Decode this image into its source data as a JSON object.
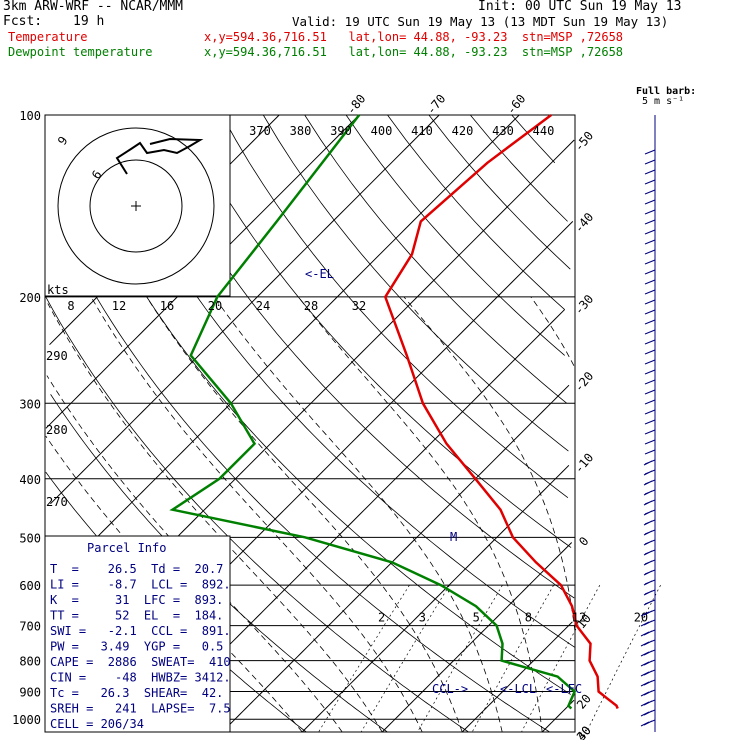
{
  "header": {
    "model": "3km ARW-WRF -- NCAR/MMM",
    "init": "Init: 00 UTC Sun 19 May 13",
    "fcst_label": "Fcst:",
    "fcst_value": "19 h",
    "valid": "Valid: 19 UTC Sun 19 May 13 (13 MDT Sun 19 May 13)",
    "temp_label": "Temperature",
    "temp_info": "x,y=594.36,716.51   lat,lon= 44.88, -93.23  stn=MSP ,72658",
    "dew_label": "Dewpoint temperature",
    "dew_info": "x,y=594.36,716.51   lat,lon= 44.88, -93.23  stn=MSP ,72658"
  },
  "barb_legend": {
    "title": "Full barb:",
    "units": "5 m s⁻¹"
  },
  "colors": {
    "temperature": "#e00000",
    "dewpoint": "#008000",
    "info": "#000080",
    "grid": "#000000"
  },
  "chart_data": {
    "type": "line",
    "chart_kind": "skew-T log-p sounding",
    "pressure_levels": [
      "100",
      "200",
      "300",
      "400",
      "500",
      "600",
      "700",
      "800",
      "900",
      "1000"
    ],
    "temperature_ticks": [
      "-80",
      "-70",
      "-60",
      "-50",
      "-40",
      "-30",
      "-20",
      "-10",
      "0",
      "10",
      "20",
      "30",
      "40"
    ],
    "theta_labels": [
      "370",
      "380",
      "390",
      "400",
      "410",
      "420",
      "430",
      "440"
    ],
    "mixing_ratio_labels": [
      "2",
      "3",
      "5",
      "8",
      "12",
      "20"
    ],
    "hodo_speed_ticks": [
      "8",
      "12",
      "16",
      "20",
      "24",
      "28",
      "32"
    ],
    "hodo_speed_label": "kts",
    "hodo_ring_labels": [
      "6",
      "9"
    ],
    "left_theta_labels": [
      "290",
      "280",
      "270"
    ],
    "annotations": {
      "el": "<-EL",
      "ccl": "CCL->",
      "lcl": "<-LCL",
      "lfc": "<-LFC",
      "storm_motion": "M"
    },
    "series": [
      {
        "name": "Temperature",
        "points": [
          [
            100,
            -56
          ],
          [
            120,
            -58
          ],
          [
            150,
            -59
          ],
          [
            170,
            -56
          ],
          [
            200,
            -54
          ],
          [
            250,
            -44
          ],
          [
            300,
            -36
          ],
          [
            350,
            -28
          ],
          [
            400,
            -20
          ],
          [
            450,
            -13
          ],
          [
            500,
            -8
          ],
          [
            550,
            -2
          ],
          [
            600,
            4
          ],
          [
            650,
            8
          ],
          [
            700,
            11
          ],
          [
            750,
            15
          ],
          [
            800,
            17
          ],
          [
            850,
            20
          ],
          [
            900,
            22
          ],
          [
            925,
            24
          ],
          [
            950,
            26
          ],
          [
            960,
            26.5
          ]
        ]
      },
      {
        "name": "Dewpoint temperature",
        "points": [
          [
            100,
            -80
          ],
          [
            150,
            -77
          ],
          [
            200,
            -75
          ],
          [
            250,
            -71
          ],
          [
            300,
            -60
          ],
          [
            350,
            -52
          ],
          [
            400,
            -52
          ],
          [
            450,
            -54
          ],
          [
            500,
            -34
          ],
          [
            550,
            -20
          ],
          [
            600,
            -11
          ],
          [
            650,
            -4
          ],
          [
            700,
            1
          ],
          [
            750,
            4
          ],
          [
            800,
            6
          ],
          [
            850,
            15
          ],
          [
            900,
            19
          ],
          [
            925,
            19.5
          ],
          [
            950,
            20
          ],
          [
            960,
            20.7
          ]
        ]
      }
    ]
  },
  "parcel_info": {
    "title": "Parcel Info",
    "rows": [
      "T  =    26.5  Td =  20.7",
      "LI =    -8.7  LCL =  892.",
      "K  =     31  LFC =  893.",
      "TT =     52  EL  =  184.",
      "SWI =   -2.1  CCL =  891.",
      "PW =   3.49  YGP =   0.5",
      "CAPE =  2886  SWEAT=  410",
      "CIN =    -48  HWBZ= 3412.",
      "Tc =   26.3  SHEAR=  42.",
      "SREH =   241  LAPSE=  7.5",
      "CELL = 206/34"
    ]
  }
}
